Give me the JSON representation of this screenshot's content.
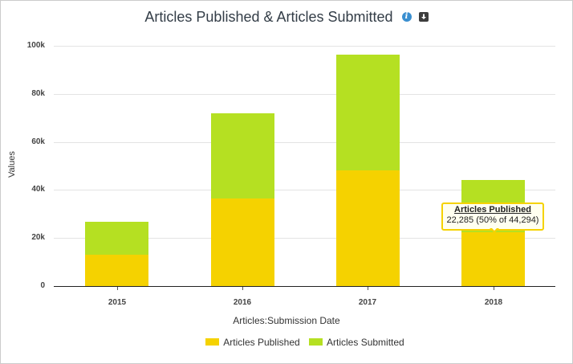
{
  "header": {
    "title": "Articles Published & Articles Submitted",
    "info_icon": "info-icon",
    "download_icon": "download-icon",
    "info_glyph": "i"
  },
  "chart_data": {
    "type": "bar",
    "stacked": true,
    "title": "Articles Published & Articles Submitted",
    "xlabel": "Articles:Submission Date",
    "ylabel": "Values",
    "ylim": [
      0,
      100000
    ],
    "yticks": [
      "0",
      "20k",
      "40k",
      "60k",
      "80k",
      "100k"
    ],
    "grid": true,
    "legend_position": "bottom",
    "categories": [
      "2015",
      "2016",
      "2017",
      "2018"
    ],
    "series": [
      {
        "name": "Articles Published",
        "color": "#f5d200",
        "values": [
          13100,
          36500,
          48200,
          22285
        ]
      },
      {
        "name": "Articles Submitted",
        "color": "#b5e022",
        "values": [
          13600,
          35500,
          48000,
          22009
        ]
      }
    ],
    "totals": [
      26700,
      72000,
      96200,
      44294
    ],
    "tooltip": {
      "category": "2018",
      "series": "Articles Published",
      "title": "Articles Published",
      "text": "22,285 (50% of 44,294)"
    }
  },
  "legend": {
    "items": [
      {
        "label": "Articles Published",
        "color": "#f5d200"
      },
      {
        "label": "Articles Submitted",
        "color": "#b5e022"
      }
    ]
  }
}
